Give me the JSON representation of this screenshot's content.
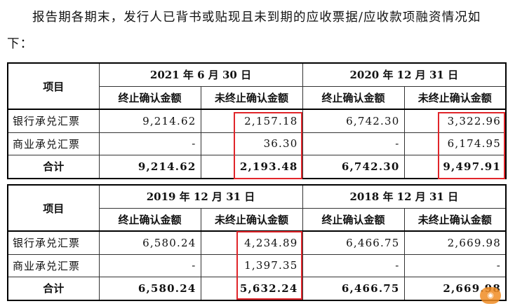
{
  "paragraph": "报告期各期末，发行人已背书或贴现且未到期的应收票据/应收款项融资情况如下：",
  "col_item": "项目",
  "col_end": "终止确认金额",
  "col_notend": "未终止确认金额",
  "blocks": [
    {
      "periods": [
        "2021 年 6 月 30 日",
        "2020 年 12 月 31 日"
      ],
      "rows": [
        {
          "label": "银行承兑汇票",
          "values": [
            "9,214.62",
            "2,157.18",
            "6,742.30",
            "3,322.96"
          ]
        },
        {
          "label": "商业承兑汇票",
          "values": [
            "-",
            "36.30",
            "-",
            "6,174.95"
          ]
        },
        {
          "label": "合计",
          "values": [
            "9,214.62",
            "2,193.48",
            "6,742.30",
            "9,497.91"
          ]
        }
      ]
    },
    {
      "periods": [
        "2019 年 12 月 31 日",
        "2018 年 12 月 31 日"
      ],
      "rows": [
        {
          "label": "银行承兑汇票",
          "values": [
            "6,580.24",
            "4,234.89",
            "6,466.75",
            "2,669.98"
          ]
        },
        {
          "label": "商业承兑汇票",
          "values": [
            "-",
            "1,397.35",
            "-",
            "-"
          ]
        },
        {
          "label": "合计",
          "values": [
            "6,580.24",
            "5,632.24",
            "6,466.75",
            "2,669.98"
          ]
        }
      ]
    }
  ],
  "highlight_color": "#e0252a",
  "watermark_icon": "logo-badge-icon"
}
